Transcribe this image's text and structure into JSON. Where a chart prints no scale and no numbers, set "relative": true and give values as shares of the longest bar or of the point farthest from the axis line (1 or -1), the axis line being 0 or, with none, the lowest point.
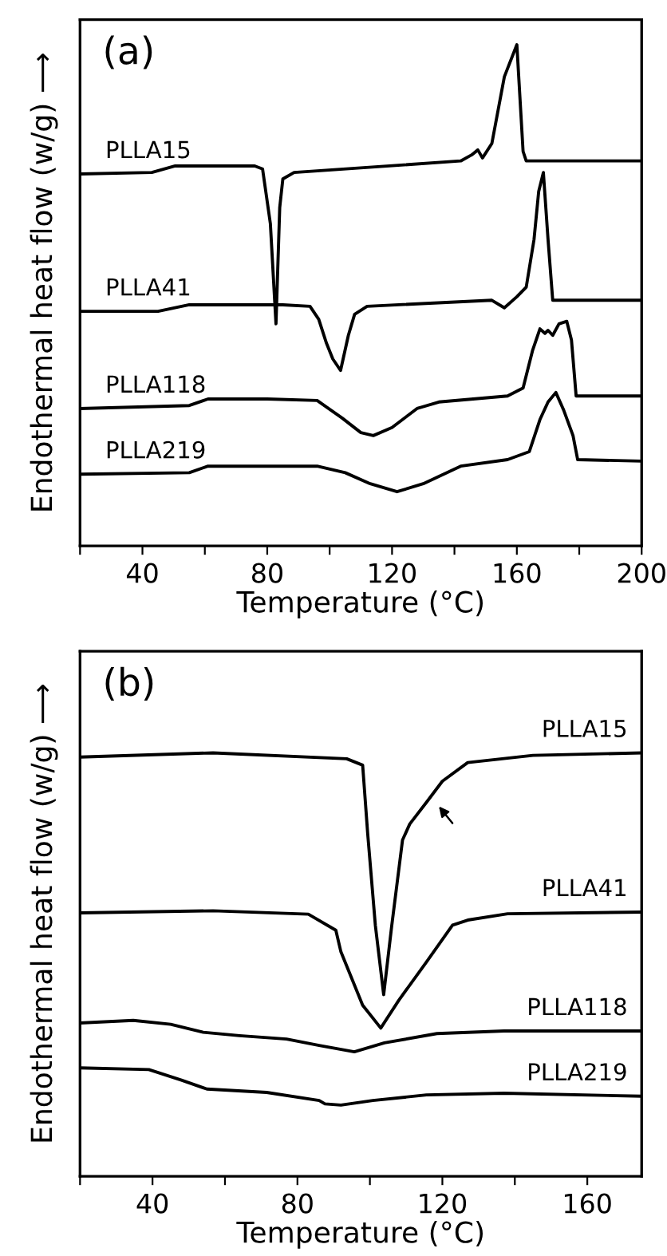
{
  "chart_data": [
    {
      "type": "line",
      "relative": true,
      "xlabel": "Temperature (°C)",
      "ylabel": "Endothermal heat flow (w/g) ⟶",
      "xlim": [
        20,
        200
      ],
      "xticks": [
        {
          "value": 20,
          "label": null
        },
        40,
        {
          "value": 60,
          "label": null
        },
        80,
        {
          "value": 100,
          "label": null
        },
        120,
        {
          "value": 140,
          "label": null
        },
        160,
        {
          "value": 180,
          "label": null
        },
        200
      ],
      "tick_labels": "x",
      "grid": false,
      "legend": false,
      "marker": "none",
      "line_style": "solid",
      "annotations": [
        "(a)"
      ],
      "series": [
        {
          "name": "PLLA15",
          "color": "#000000",
          "x": [
            20,
            43,
            50.5,
            76,
            78.5,
            81,
            82.8,
            84,
            85,
            88.6,
            142,
            145.5,
            147.5,
            149,
            152,
            156,
            160,
            162,
            163,
            200
          ],
          "values": [
            0.742,
            0.745,
            0.758,
            0.758,
            0.752,
            0.643,
            0.443,
            0.675,
            0.732,
            0.745,
            0.768,
            0.78,
            0.79,
            0.774,
            0.803,
            0.936,
            1.0,
            0.787,
            0.768,
            0.768
          ]
        },
        {
          "name": "PLLA41",
          "color": "#000000",
          "x": [
            20,
            45,
            55,
            85,
            93.7,
            96.5,
            99,
            101,
            103.5,
            106,
            108,
            112,
            152,
            156,
            160,
            163,
            165.5,
            167,
            168.5,
            170,
            171.5,
            200
          ],
          "values": [
            0.468,
            0.468,
            0.481,
            0.481,
            0.478,
            0.452,
            0.404,
            0.373,
            0.35,
            0.42,
            0.462,
            0.478,
            0.49,
            0.475,
            0.497,
            0.516,
            0.611,
            0.707,
            0.745,
            0.611,
            0.49,
            0.49
          ]
        },
        {
          "name": "PLLA118",
          "color": "#000000",
          "x": [
            20,
            55,
            61,
            80,
            96,
            104,
            110,
            114,
            120,
            128,
            135,
            157,
            162,
            165,
            167.4,
            169,
            170,
            171.5,
            173.5,
            176,
            177.5,
            179,
            200
          ],
          "values": [
            0.274,
            0.28,
            0.293,
            0.293,
            0.29,
            0.255,
            0.226,
            0.22,
            0.236,
            0.274,
            0.287,
            0.299,
            0.315,
            0.389,
            0.433,
            0.424,
            0.43,
            0.42,
            0.443,
            0.448,
            0.411,
            0.299,
            0.299
          ]
        },
        {
          "name": "PLLA219",
          "color": "#000000",
          "x": [
            20,
            55,
            61,
            96,
            105,
            113,
            121.6,
            130,
            142,
            157,
            164,
            167.4,
            170,
            172.5,
            175,
            178,
            179.5,
            200
          ],
          "values": [
            0.143,
            0.146,
            0.159,
            0.159,
            0.146,
            0.124,
            0.108,
            0.124,
            0.159,
            0.172,
            0.188,
            0.252,
            0.287,
            0.306,
            0.271,
            0.22,
            0.172,
            0.169
          ]
        }
      ]
    },
    {
      "type": "line",
      "relative": true,
      "xlabel": "Temperature (°C)",
      "ylabel": "Endothermal heat flow (w/g) ⟶",
      "xlim": [
        20,
        175
      ],
      "xticks": [
        {
          "value": 20,
          "label": null
        },
        40,
        {
          "value": 60,
          "label": null
        },
        80,
        {
          "value": 100,
          "label": null
        },
        120,
        {
          "value": 140,
          "label": null
        },
        160
      ],
      "tick_labels": "x",
      "grid": false,
      "legend": false,
      "marker": "none",
      "line_style": "solid",
      "annotations": [
        "(b)"
      ],
      "series": [
        {
          "name": "PLLA15",
          "color": "#000000",
          "x": [
            20,
            56.7,
            93.6,
            98,
            99.4,
            101.5,
            103.8,
            106,
            109,
            111,
            115.6,
            120,
            127,
            145,
            175
          ],
          "values": [
            0.99,
            1.0,
            0.986,
            0.971,
            0.808,
            0.593,
            0.429,
            0.59,
            0.794,
            0.832,
            0.883,
            0.933,
            0.977,
            0.994,
            1.0
          ]
        },
        {
          "name": "PLLA41",
          "color": "#000000",
          "x": [
            20,
            56.7,
            83,
            90.6,
            92,
            98,
            103,
            108,
            115.6,
            122.8,
            127,
            138,
            175
          ],
          "values": [
            0.622,
            0.627,
            0.619,
            0.581,
            0.53,
            0.404,
            0.35,
            0.416,
            0.506,
            0.593,
            0.605,
            0.62,
            0.624
          ]
        },
        {
          "name": "PLLA118",
          "color": "#000000",
          "x": [
            20,
            34.7,
            45,
            54,
            64,
            77,
            86,
            95.7,
            104,
            118.5,
            137,
            175
          ],
          "values": [
            0.362,
            0.368,
            0.359,
            0.34,
            0.332,
            0.324,
            0.309,
            0.294,
            0.315,
            0.337,
            0.343,
            0.343
          ]
        },
        {
          "name": "PLLA219",
          "color": "#000000",
          "x": [
            20,
            39,
            48,
            55,
            71.5,
            86,
            87.6,
            92,
            100.8,
            115.6,
            137,
            175
          ],
          "values": [
            0.256,
            0.252,
            0.227,
            0.206,
            0.198,
            0.179,
            0.171,
            0.168,
            0.179,
            0.192,
            0.196,
            0.189
          ]
        }
      ]
    }
  ]
}
